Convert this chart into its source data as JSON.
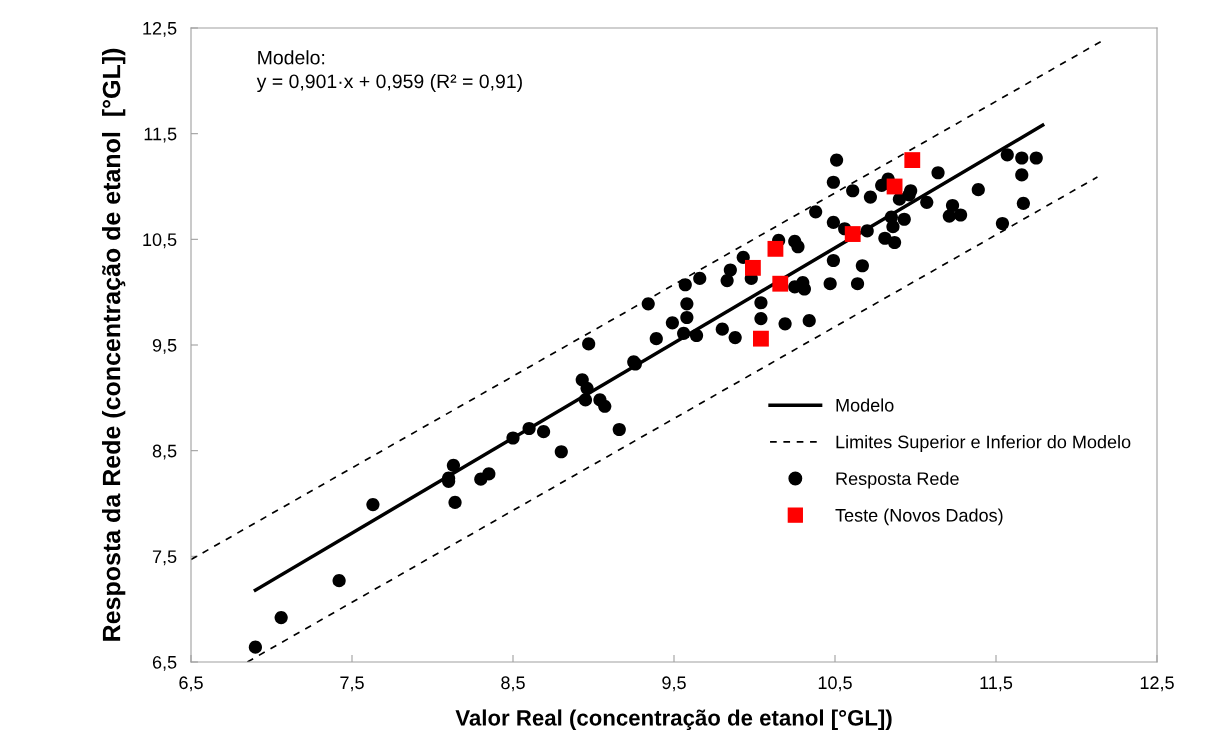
{
  "chart_data": {
    "type": "scatter",
    "xlabel": "Valor Real (concentração de etanol [°GL])",
    "ylabel": "Resposta da Rede (concentração de etanol  [°GL])",
    "annotations": [
      "Modelo:\ny = 0,901·x + 0,959 (R² = 0,91)"
    ],
    "xlim": [
      6.5,
      12.5
    ],
    "ylim": [
      6.5,
      12.5
    ],
    "xticks": [
      {
        "value": 6.5,
        "label": "6,5"
      },
      {
        "value": 7.5,
        "label": "7,5"
      },
      {
        "value": 8.5,
        "label": "8,5"
      },
      {
        "value": 9.5,
        "label": "9,5"
      },
      {
        "value": 10.5,
        "label": "10,5"
      },
      {
        "value": 11.5,
        "label": "11,5"
      },
      {
        "value": 12.5,
        "label": "12,5"
      }
    ],
    "yticks": [
      {
        "value": 6.5,
        "label": "6,5"
      },
      {
        "value": 7.5,
        "label": "7,5"
      },
      {
        "value": 8.5,
        "label": "8,5"
      },
      {
        "value": 9.5,
        "label": "9,5"
      },
      {
        "value": 10.5,
        "label": "10,5"
      },
      {
        "value": 11.5,
        "label": "11,5"
      },
      {
        "value": 12.5,
        "label": "12,5"
      }
    ],
    "grid": false,
    "legend": "bottom right",
    "series": [
      {
        "name": "Modelo",
        "type": "line",
        "color": "#000000",
        "line_style": "solid",
        "marker": "none",
        "x": [
          6.9,
          11.79
        ],
        "values": [
          7.18,
          11.58
        ]
      },
      {
        "name": "Limites Superior e Inferior do Modelo",
        "type": "line",
        "color": "#000000",
        "line_style": "dashed",
        "marker": "none",
        "x": [
          6.5,
          12.15,
          null,
          6.85,
          12.13
        ],
        "values": [
          7.47,
          12.37,
          null,
          6.5,
          11.09
        ]
      },
      {
        "name": "Resposta Rede",
        "color": "#000000",
        "marker": "circle",
        "x": [
          6.9,
          7.06,
          7.42,
          7.63,
          8.1,
          8.1,
          8.13,
          8.14,
          8.3,
          8.35,
          8.5,
          8.6,
          8.69,
          8.8,
          8.93,
          8.96,
          8.95,
          9.04,
          9.07,
          9.16,
          9.25,
          9.26,
          8.97,
          9.34,
          9.39,
          9.49,
          9.56,
          9.58,
          9.58,
          9.57,
          9.64,
          9.66,
          9.8,
          9.88,
          9.83,
          9.85,
          9.93,
          9.98,
          10.04,
          10.04,
          10.19,
          10.15,
          10.25,
          10.27,
          10.3,
          10.25,
          10.31,
          10.34,
          10.47,
          10.49,
          10.64,
          10.67,
          10.7,
          10.81,
          10.87,
          10.51,
          10.49,
          10.61,
          10.72,
          10.79,
          10.83,
          10.97,
          10.96,
          10.9,
          11.14,
          11.07,
          11.39,
          11.57,
          11.66,
          11.75,
          11.66,
          11.67,
          11.54,
          11.23,
          11.21,
          11.28,
          10.38,
          10.49,
          10.56,
          10.85,
          10.86,
          10.93
        ],
        "values": [
          6.64,
          6.92,
          7.27,
          7.99,
          8.24,
          8.21,
          8.36,
          8.01,
          8.23,
          8.28,
          8.62,
          8.71,
          8.68,
          8.49,
          9.17,
          9.09,
          8.98,
          8.98,
          8.92,
          8.7,
          9.34,
          9.32,
          9.51,
          9.89,
          9.56,
          9.71,
          9.61,
          9.76,
          9.89,
          10.07,
          9.59,
          10.13,
          9.65,
          9.57,
          10.11,
          10.21,
          10.33,
          10.13,
          9.9,
          9.75,
          9.7,
          10.49,
          10.48,
          10.43,
          10.09,
          10.05,
          10.03,
          9.73,
          10.08,
          10.3,
          10.08,
          10.25,
          10.58,
          10.51,
          10.47,
          11.25,
          11.04,
          10.96,
          10.9,
          11.01,
          11.07,
          10.96,
          10.92,
          10.88,
          11.13,
          10.85,
          10.97,
          11.3,
          11.27,
          11.27,
          11.11,
          10.84,
          10.65,
          10.82,
          10.72,
          10.73,
          10.76,
          10.66,
          10.6,
          10.71,
          10.62,
          10.69
        ]
      },
      {
        "name": "Teste (Novos Dados)",
        "color": "#ff0000",
        "marker": "square",
        "x": [
          10.13,
          9.99,
          10.16,
          10.04,
          10.61,
          10.98,
          10.87
        ],
        "values": [
          10.41,
          10.23,
          10.08,
          9.56,
          10.55,
          11.25,
          11.0
        ]
      }
    ]
  }
}
